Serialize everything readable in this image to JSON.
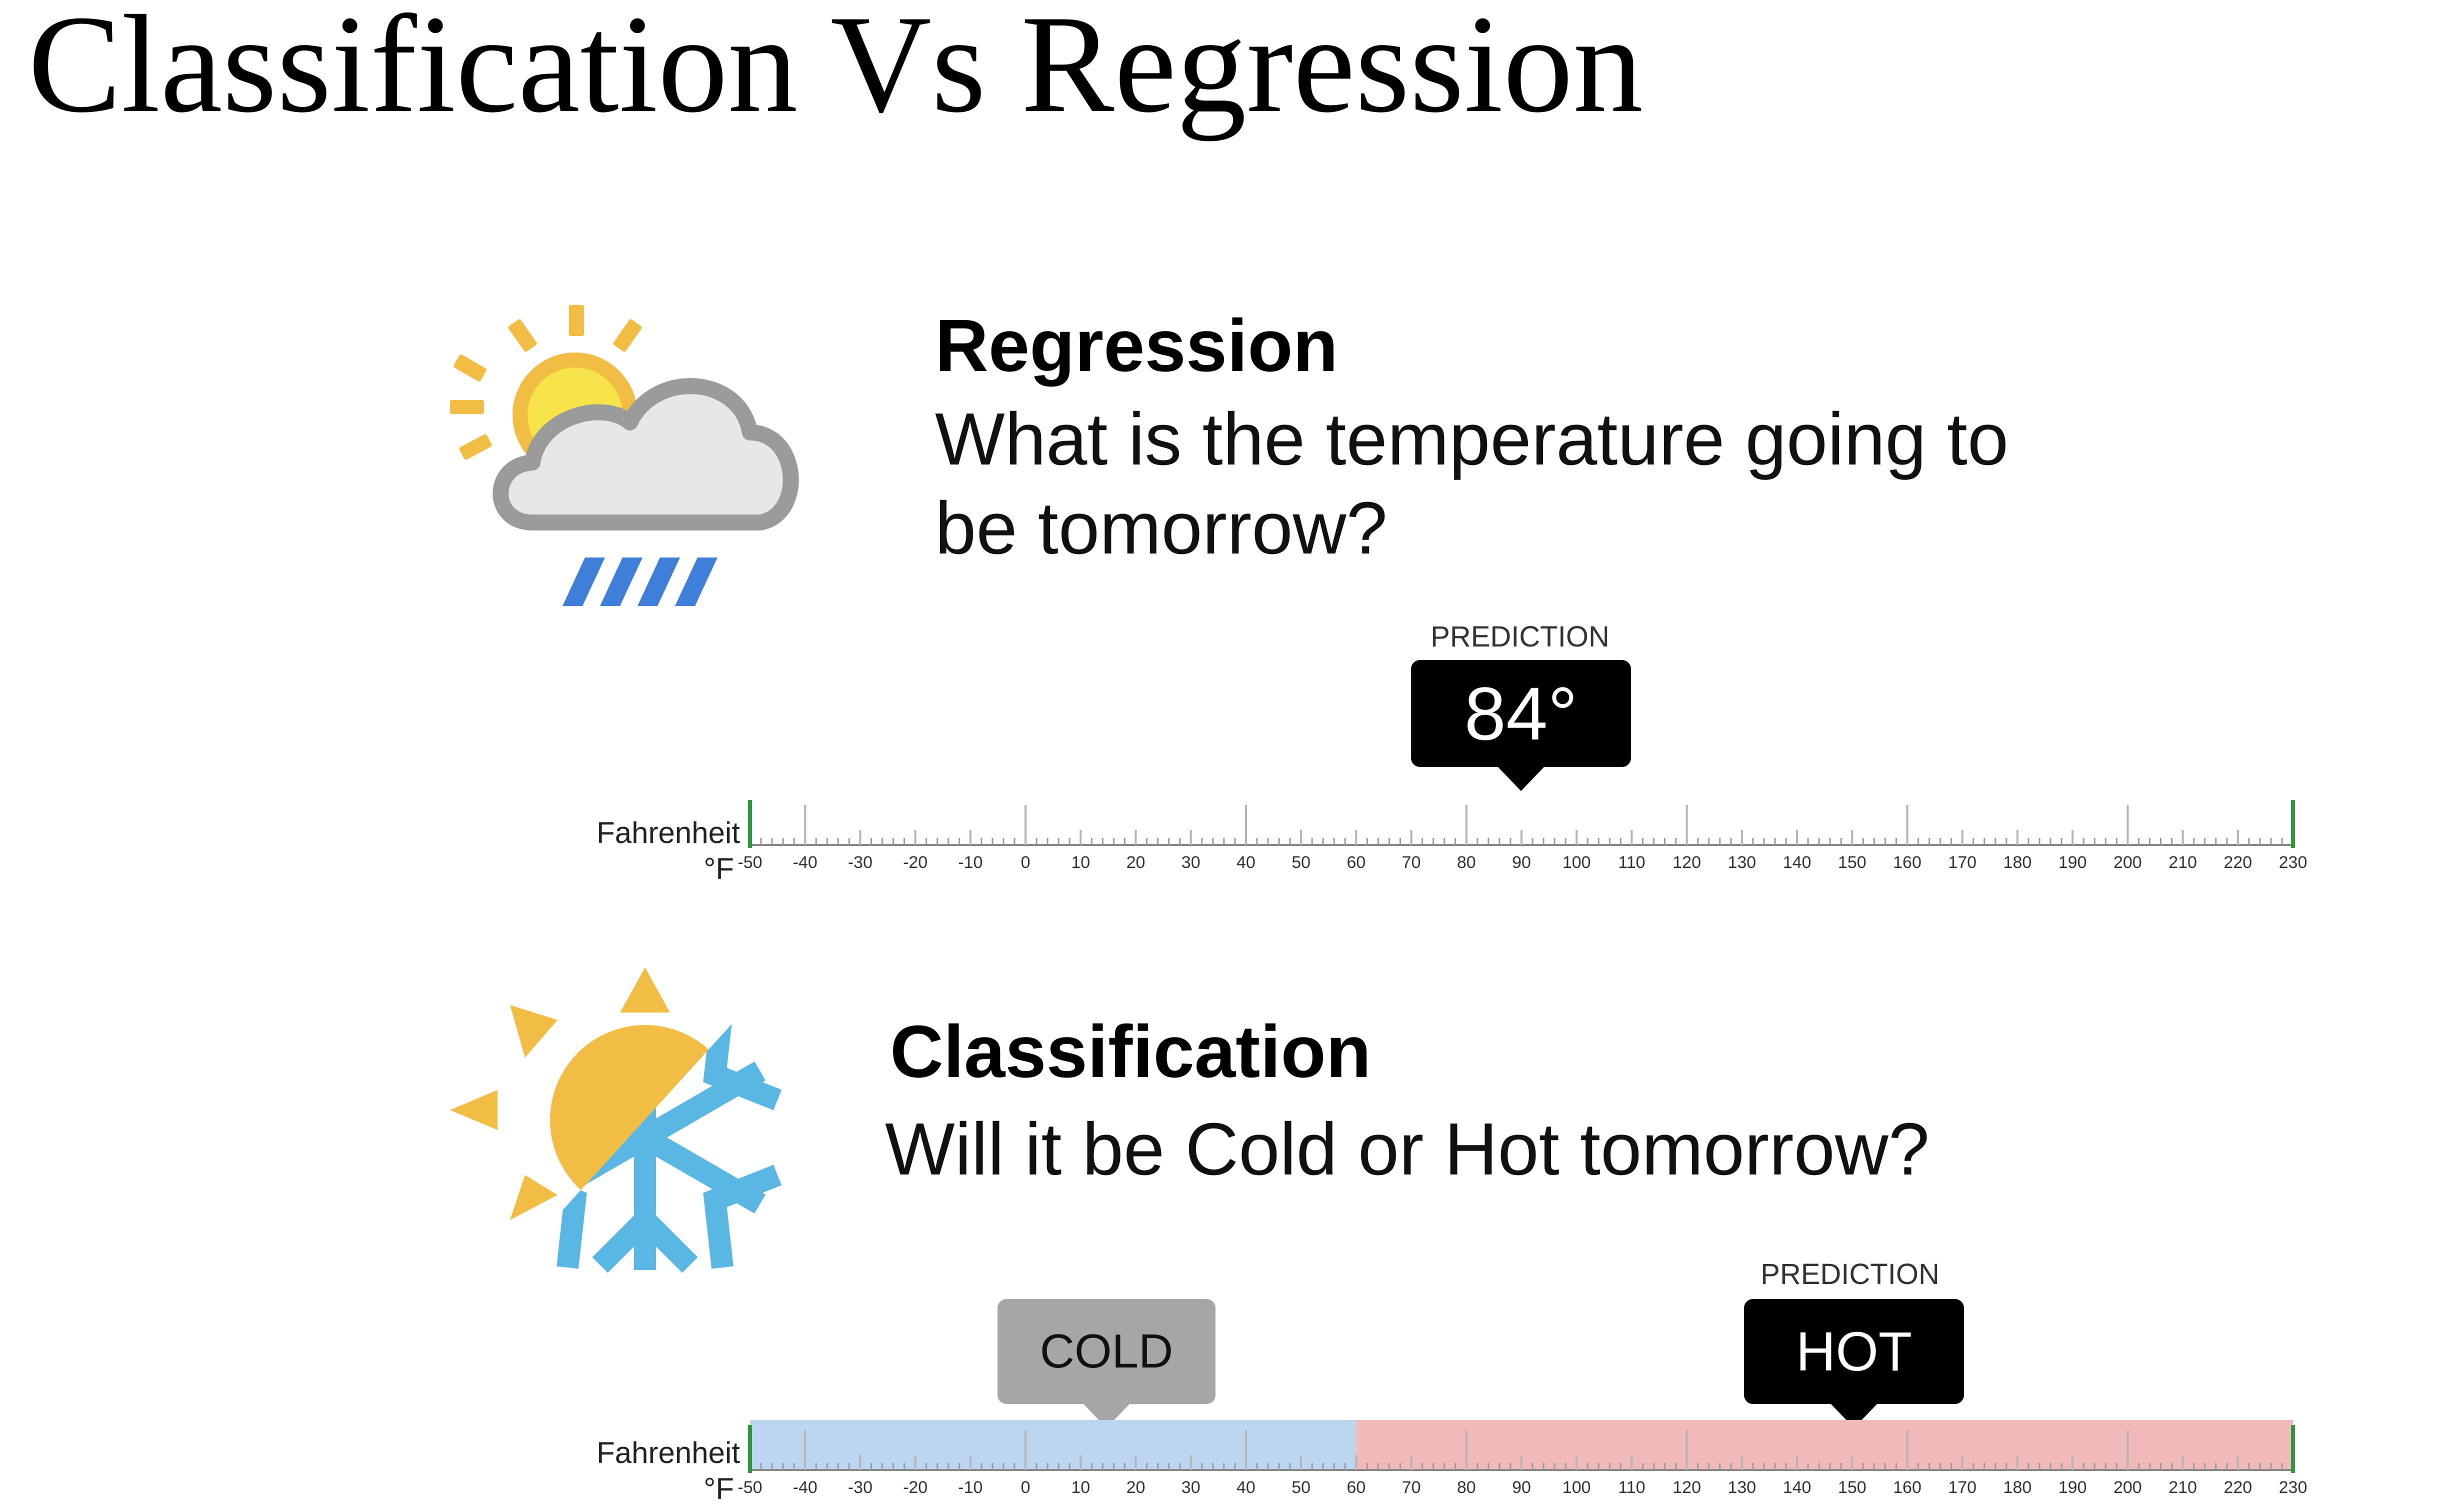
{
  "slide_title": "Classification Vs Regression",
  "regression": {
    "heading": "Regression",
    "question_line1": "What is the temperature going to",
    "question_line2": "be tomorrow?",
    "prediction_label": "PREDICTION",
    "prediction_value": "84°",
    "prediction_temp": 84,
    "axis_label_line1": "Fahrenheit",
    "axis_label_line2": "°F"
  },
  "classification": {
    "heading": "Classification",
    "question": "Will it be Cold or Hot tomorrow?",
    "prediction_label": "PREDICTION",
    "cold_label": "COLD",
    "cold_temp": 10,
    "hot_label": "HOT",
    "hot_temp": 150,
    "threshold": 60,
    "axis_label_line1": "Fahrenheit",
    "axis_label_line2": "°F"
  },
  "scale": {
    "min": -50,
    "max": 230,
    "step": 10,
    "ticks": [
      "-50",
      "-40",
      "-30",
      "-20",
      "-10",
      "0",
      "10",
      "20",
      "30",
      "40",
      "50",
      "60",
      "70",
      "80",
      "90",
      "100",
      "110",
      "120",
      "130",
      "140",
      "150",
      "160",
      "170",
      "180",
      "190",
      "200",
      "210",
      "220",
      "230"
    ]
  },
  "colors": {
    "sun": "#f2bd45",
    "sun_core": "#f7e44a",
    "cloud": "#e6e7e9",
    "cloud_outline": "#9b9b9b",
    "rain": "#3f7fd9",
    "snow": "#5ab7e4",
    "cold_band": "#bcd6f2",
    "hot_band": "#f2b9bb",
    "cold_bubble": "#a6a6a6",
    "black_bubble": "#000000",
    "end_tick": "#2f9a3a"
  }
}
